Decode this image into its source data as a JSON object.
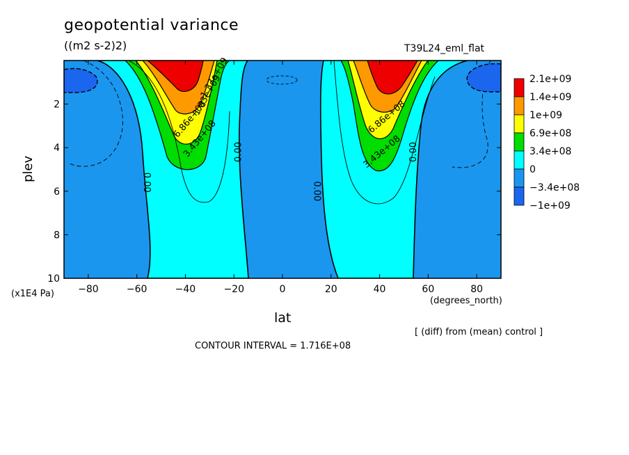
{
  "chart_data": {
    "type": "contour",
    "title": "geopotential variance",
    "units": "((m2 s-2)2)",
    "run_label": "T39L24_eml_flat",
    "xlabel": "lat",
    "ylabel": "plev",
    "x_units": "(degrees_north)",
    "y_units": "(x1E4 Pa)",
    "xlim": [
      -90,
      90
    ],
    "ylim": [
      0,
      10
    ],
    "y_inverted": true,
    "x_ticks": [
      -80,
      -60,
      -40,
      -20,
      0,
      20,
      40,
      60,
      80
    ],
    "x_tick_labels": [
      "−80",
      "−60",
      "−40",
      "−20",
      "0",
      "20",
      "40",
      "60",
      "80"
    ],
    "y_ticks": [
      2,
      4,
      6,
      8,
      10
    ],
    "y_tick_labels": [
      "2",
      "4",
      "6",
      "8",
      "10"
    ],
    "note": "[ (diff) from (mean) control ]",
    "contour_interval_text": "CONTOUR INTERVAL = 1.716E+08",
    "levels": [
      {
        "label": "2.1e+09",
        "color": "#ee0000"
      },
      {
        "label": "1.4e+09",
        "color": "#ff9900"
      },
      {
        "label": "1e+09",
        "color": "#ffff00"
      },
      {
        "label": "6.9e+08",
        "color": "#00dd00"
      },
      {
        "label": "3.4e+08",
        "color": "#00ffff"
      },
      {
        "label": "0",
        "color": "#1a96ee"
      },
      {
        "label": "−3.4e+08",
        "color": "#1a66ee"
      },
      {
        "label": "−1e+09",
        "color": ""
      }
    ],
    "contour_labels": [
      {
        "text": "0.00",
        "x": -56,
        "y": 5.6,
        "rotate": 90
      },
      {
        "text": "0.00",
        "x": -18,
        "y": 4.2,
        "rotate": -90
      },
      {
        "text": "0.00",
        "x": 14,
        "y": 6.0,
        "rotate": 90
      },
      {
        "text": "0.00",
        "x": 54,
        "y": 4.2,
        "rotate": -90
      },
      {
        "text": "3.43e+08",
        "x": -34,
        "y": 3.6,
        "rotate": -50
      },
      {
        "text": "6.86e+08",
        "x": -38,
        "y": 2.7,
        "rotate": -50
      },
      {
        "text": "1.03e+09",
        "x": -31,
        "y": 1.6,
        "rotate": -60
      },
      {
        "text": "1.37e+09",
        "x": -28,
        "y": 0.8,
        "rotate": -60
      },
      {
        "text": "3.43e+08",
        "x": 41,
        "y": 4.2,
        "rotate": -40
      },
      {
        "text": "6.86e+08",
        "x": 43,
        "y": 2.6,
        "rotate": -40
      }
    ]
  }
}
